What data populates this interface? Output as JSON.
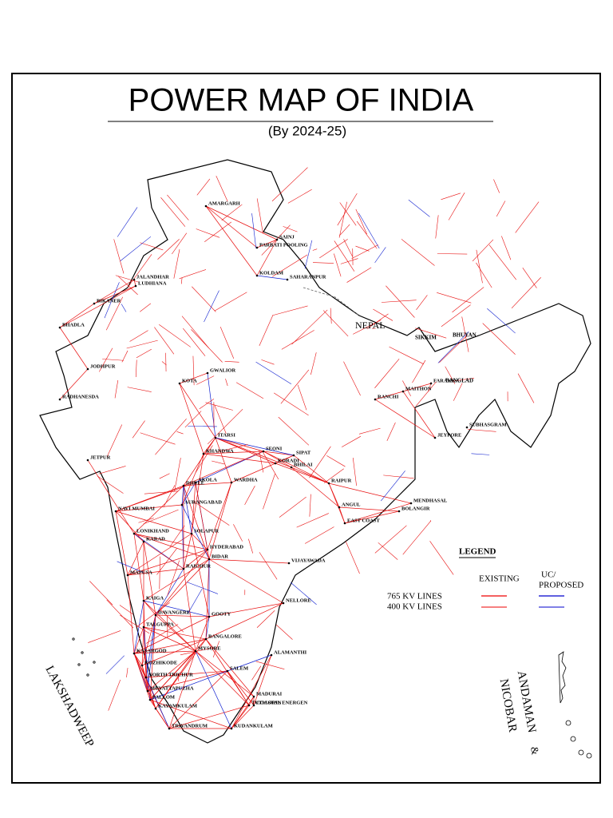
{
  "title": "POWER MAP OF INDIA",
  "subtitle": "(By 2024-25)",
  "regions": {
    "nepal": "NEPAL",
    "sikkim": "SIKKIM",
    "bhutan": "BHUYAN",
    "bangladesh": "BANGLAD",
    "lakshadweep": "LAKSHADWEEP",
    "andaman": "ANDAMAN",
    "amp": "&",
    "nicobar": "NICOBAR"
  },
  "legend": {
    "title": "LEGEND",
    "existing": "EXISTING",
    "uc": "UC/",
    "proposed": "PROPOSED",
    "line765": "765  KV  LINES",
    "line400": "400  KV  LINES"
  },
  "places": [
    "AMARGARH",
    "SAINJ",
    "PARBATI POOLING",
    "JALANDHAR",
    "LUDHIANA",
    "BIKANER",
    "BHADLA",
    "JODHPUR",
    "RADHANESDA",
    "JETPUR",
    "NAVI MUMBAI",
    "LONIKHAND",
    "KARAD",
    "MAPUSA",
    "KAIGA",
    "DAVANGERE",
    "TALGUPPA",
    "KASARGOD",
    "KOZHIKODE",
    "NORTH TRICHUR",
    "MUVATTAPUZHA",
    "PALLOM",
    "KAYAMKULAM",
    "TRIVANDRUM",
    "KUDANKULAM",
    "TUTICORIN",
    "MADURAI",
    "BANGALORE",
    "MYSORE",
    "NELLORE",
    "VIJAYAWADA",
    "HYDERABAD",
    "RAICHUR",
    "GOOTY",
    "BIDAR",
    "SOLAPUR",
    "AURANGABAD",
    "AKOLA",
    "WARDHA",
    "KORADI",
    "SEONI",
    "BHILAI",
    "RAIPUR",
    "ANGUL",
    "DHULE",
    "KHANDWA",
    "ITARSI",
    "GWALIOR",
    "KOTA",
    "SAHARANPUR",
    "MENDHASAL",
    "BOLANGIR",
    "EAST COAST",
    "JEYPORE",
    "SIPAT",
    "RANCHI",
    "MAITHON",
    "FARAKKA",
    "SUBHASGRAM",
    "KOLDAM",
    "COASTAL ENERGEN",
    "ALAMANTHI",
    "SALEM"
  ]
}
